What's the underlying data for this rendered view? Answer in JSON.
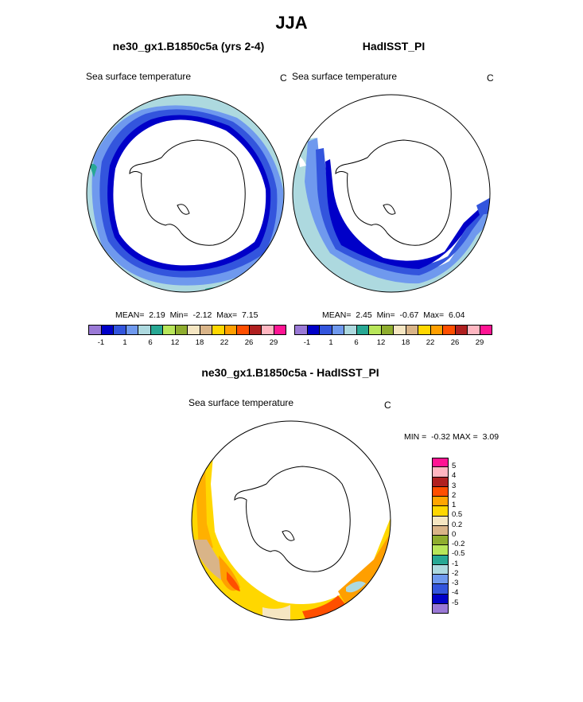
{
  "page_title": "JJA",
  "panels": [
    {
      "title": "ne30_gx1.B1850c5a (yrs 2-4)",
      "variable": "Sea surface temperature",
      "units": "C",
      "stats": "MEAN=  2.19  Min=  -2.12  Max=  7.15"
    },
    {
      "title": "HadISST_PI",
      "variable": "Sea surface temperature",
      "units": "C",
      "stats": "MEAN=  2.45  Min=  -0.67  Max=  6.04"
    }
  ],
  "diff_panel": {
    "title": "ne30_gx1.B1850c5a - HadISST_PI",
    "variable": "Sea surface temperature",
    "units": "C",
    "stats": "MIN =  -0.32 MAX =  3.09"
  },
  "horizontal_colorbar": {
    "colors": [
      "#9a79d6",
      "#0000c8",
      "#3355dd",
      "#6f99ee",
      "#add9df",
      "#28a894",
      "#b8e65a",
      "#8fad2e",
      "#f5e6c2",
      "#d9b488",
      "#ffd700",
      "#ff9f00",
      "#ff4f00",
      "#b02020",
      "#ffb6c1",
      "#ff1493"
    ],
    "labels": [
      "-1",
      "1",
      "6",
      "12",
      "18",
      "22",
      "26",
      "29"
    ]
  },
  "vertical_colorbar": {
    "colors": [
      "#ff1493",
      "#ffb6c1",
      "#b02020",
      "#ff4f00",
      "#ffa500",
      "#ffd700",
      "#f5e6c2",
      "#d9b488",
      "#8fad2e",
      "#b8e65a",
      "#28a894",
      "#add9df",
      "#6f99ee",
      "#3355dd",
      "#0000c8",
      "#9a79d6"
    ],
    "labels": [
      "5",
      "4",
      "3",
      "2",
      "1",
      "0.5",
      "0.2",
      "0",
      "-0.2",
      "-0.5",
      "-1",
      "-2",
      "-3",
      "-4",
      "-5"
    ]
  }
}
